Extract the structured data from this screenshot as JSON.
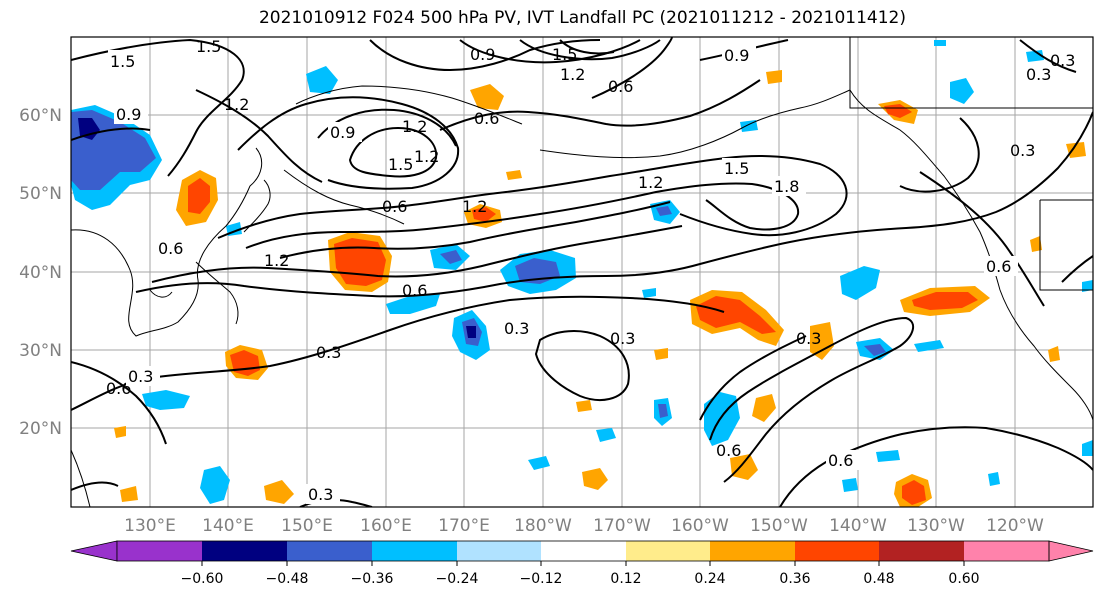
{
  "title": "2021010912 F024 500 hPa PV, IVT Landfall PC (2021011212 - 2021011412)",
  "lon_labels": [
    "130°E",
    "140°E",
    "150°E",
    "160°E",
    "170°E",
    "180°W",
    "170°W",
    "160°W",
    "150°W",
    "140°W",
    "130°W",
    "120°W"
  ],
  "lat_labels": [
    "60°N",
    "50°N",
    "40°N",
    "30°N",
    "20°N"
  ],
  "colorbar": {
    "ticks": [
      "−0.60",
      "−0.48",
      "−0.36",
      "−0.24",
      "−0.12",
      "0.12",
      "0.24",
      "0.36",
      "0.48",
      "0.60"
    ],
    "colors": [
      "#9932cc",
      "#000080",
      "#3a5fcd",
      "#00bfff",
      "#b0e2ff",
      "#ffffff",
      "#ffec8b",
      "#ffa500",
      "#ff4500",
      "#b22222",
      "#ff82ab",
      "#ff82ab"
    ]
  },
  "contour_labels": [
    "1.5",
    "1.5",
    "1.2",
    "0.9",
    "0.9",
    "1.2",
    "0.6",
    "1.5",
    "1.2",
    "1.5",
    "0.9",
    "0.9",
    "1.2",
    "0.6",
    "1.2",
    "1.5",
    "1.8",
    "0.6",
    "1.2",
    "1.2",
    "0.6",
    "0.3",
    "0.3",
    "0.3",
    "0.6",
    "0.3",
    "0.3",
    "0.6",
    "0.3",
    "0.3",
    "0.6",
    "0.3",
    "0.3",
    "0.6",
    "0.6"
  ]
}
